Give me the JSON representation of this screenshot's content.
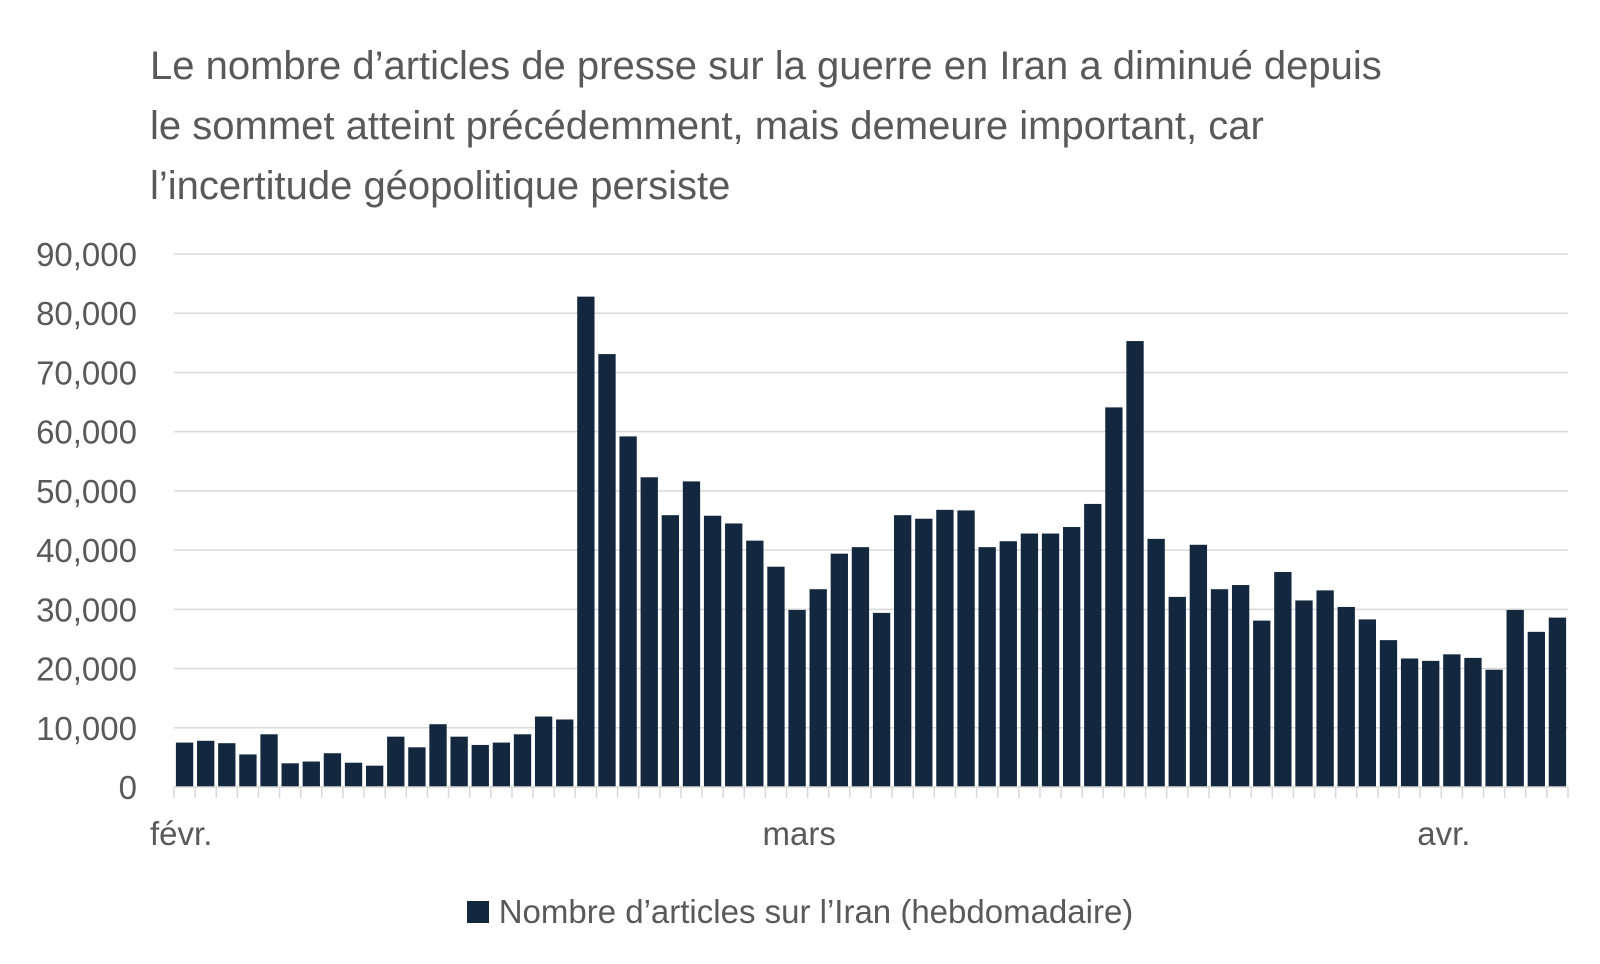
{
  "chart_data": {
    "type": "bar",
    "title": "Le nombre d’articles de presse sur la guerre en Iran a diminué depuis le sommet atteint précédemment, mais demeure important, car l’incertitude géopolitique persiste",
    "xlabel": "",
    "ylabel": "",
    "ylim": [
      0,
      90000
    ],
    "y_ticks": [
      "0",
      "10,000",
      "20,000",
      "30,000",
      "40,000",
      "50,000",
      "60,000",
      "70,000",
      "80,000",
      "90,000"
    ],
    "x_tick_labels": [
      {
        "label": "févr.",
        "index": 0
      },
      {
        "label": "mars",
        "index": 29
      },
      {
        "label": "avr.",
        "index": 60
      }
    ],
    "grid": true,
    "legend_position": "bottom",
    "series": [
      {
        "name": "Nombre d’articles sur l’Iran (hebdomadaire)",
        "color": "#13283f",
        "values": [
          7500,
          7800,
          7400,
          5500,
          8900,
          4000,
          4300,
          5700,
          4100,
          3600,
          8500,
          6700,
          10600,
          8500,
          7100,
          7500,
          8900,
          11900,
          11400,
          82800,
          73100,
          59200,
          52300,
          45900,
          51600,
          45800,
          44500,
          41600,
          37200,
          29900,
          33400,
          39400,
          40500,
          29400,
          45900,
          45300,
          46800,
          46700,
          40500,
          41500,
          42800,
          42800,
          43900,
          47800,
          64100,
          75300,
          41900,
          32100,
          40900,
          33400,
          34100,
          28100,
          36300,
          31500,
          33200,
          30400,
          28300,
          24800,
          21700,
          21300,
          22400,
          21800,
          19800,
          29900,
          26200,
          28600
        ]
      }
    ]
  }
}
